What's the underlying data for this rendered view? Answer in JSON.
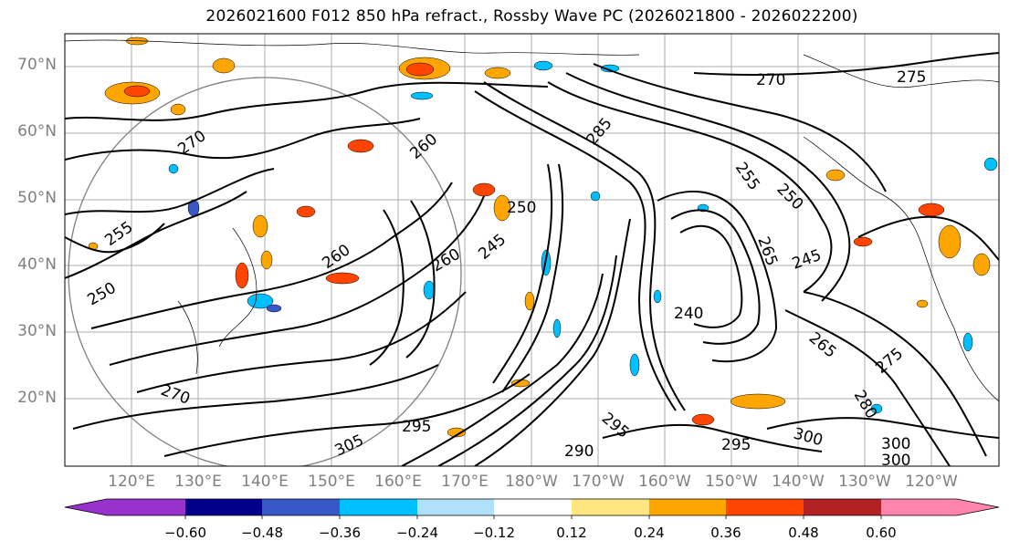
{
  "title": "2026021600 F012 850 hPa refract., Rossby Wave PC (2026021800 - 2026022200)",
  "map": {
    "projection": "PlateCarree",
    "lon_range": [
      110,
      250
    ],
    "lat_range": [
      10,
      75
    ],
    "lat_ticks": [
      "70°N",
      "60°N",
      "50°N",
      "40°N",
      "30°N",
      "20°N"
    ],
    "lon_ticks": [
      "120°E",
      "130°E",
      "140°E",
      "150°E",
      "160°E",
      "170°E",
      "180°W",
      "170°W",
      "160°W",
      "150°W",
      "140°W",
      "130°W",
      "120°W"
    ],
    "gridlines": true,
    "contour_color": "#000000",
    "contour_labels": [
      "270",
      "275",
      "270",
      "260",
      "255",
      "250",
      "255",
      "250",
      "260",
      "260",
      "245",
      "250",
      "240",
      "245",
      "265",
      "270",
      "275",
      "280",
      "285",
      "295",
      "290",
      "295",
      "300",
      "295",
      "305",
      "300",
      "300",
      "265"
    ]
  },
  "colorbar": {
    "ticks": [
      "−0.60",
      "−0.48",
      "−0.36",
      "−0.24",
      "−0.12",
      "0.12",
      "0.24",
      "0.36",
      "0.48",
      "0.60"
    ],
    "colors": [
      "#9932CC",
      "#00008B",
      "#3858C8",
      "#00BFFF",
      "#B0E0FA",
      "#FFFFFF",
      "#FFE680",
      "#FFA500",
      "#FF4500",
      "#B22222",
      "#FF85AF"
    ],
    "extend": "both"
  }
}
